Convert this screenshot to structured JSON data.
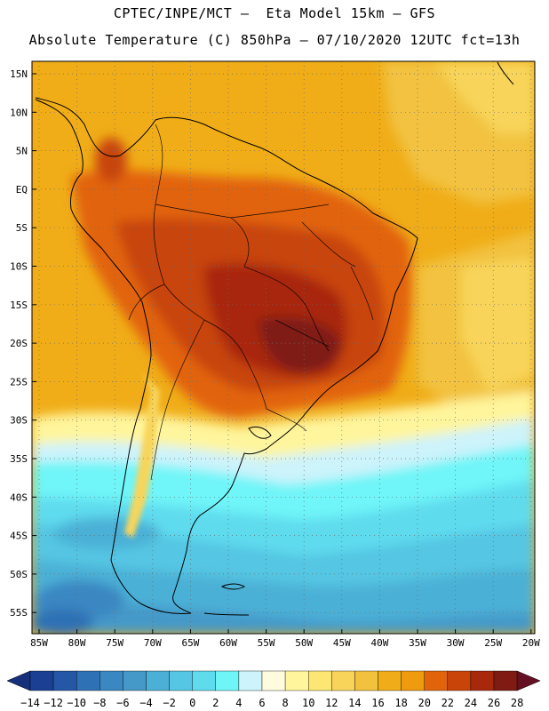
{
  "header": {
    "line1": "CPTEC/INPE/MCT —  Eta Model 15km — GFS",
    "line2": "Absolute Temperature (C) 850hPa — 07/10/2020 12UTC fct=13h"
  },
  "lat_labels": [
    "15N",
    "10N",
    "5N",
    "EQ",
    "5S",
    "10S",
    "15S",
    "20S",
    "25S",
    "30S",
    "35S",
    "40S",
    "45S",
    "50S",
    "55S"
  ],
  "lon_labels": [
    "85W",
    "80W",
    "75W",
    "70W",
    "65W",
    "60W",
    "55W",
    "50W",
    "45W",
    "40W",
    "35W",
    "30W",
    "25W",
    "20W"
  ],
  "colorbar": {
    "labels": [
      "-14",
      "-12",
      "-10",
      "-8",
      "-6",
      "-4",
      "-2",
      "0",
      "2",
      "4",
      "6",
      "8",
      "10",
      "12",
      "14",
      "16",
      "18",
      "20",
      "22",
      "24",
      "26",
      "28"
    ],
    "colors": [
      "#1a3f93",
      "#2458a6",
      "#2f71b5",
      "#3a87c2",
      "#4499c9",
      "#4cb0d6",
      "#55c6e3",
      "#5fdbee",
      "#6ff5f8",
      "#cdf3fb",
      "#fffbdf",
      "#fff59c",
      "#fde774",
      "#f8d55a",
      "#f2c23f",
      "#f0ad18",
      "#f09a0e",
      "#e2640a",
      "#c84409",
      "#a8280c",
      "#7f1b12"
    ],
    "left_arrow_color": "#16307a",
    "right_arrow_color": "#650f22"
  }
}
